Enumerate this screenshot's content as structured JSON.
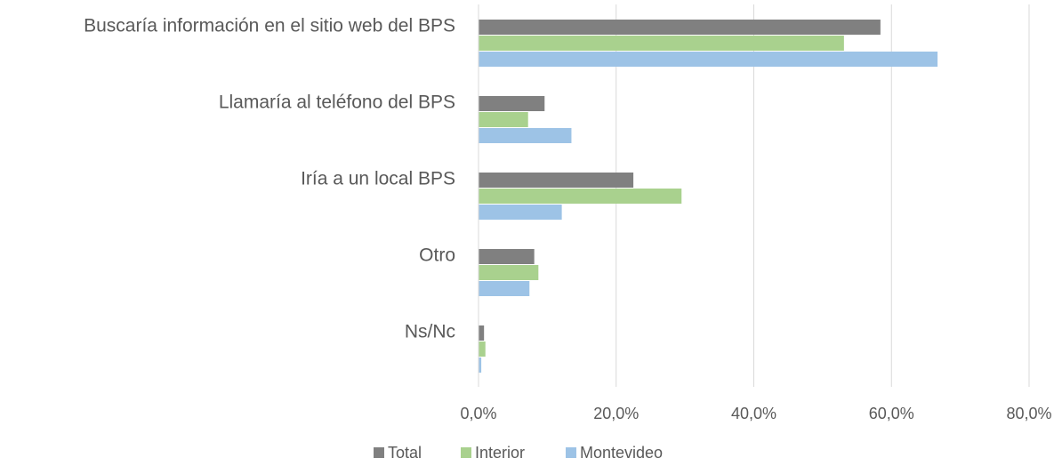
{
  "chart_data": {
    "type": "bar",
    "orientation": "horizontal",
    "categories": [
      "Buscaría información en el sitio web del BPS",
      "Llamaría al teléfono del BPS",
      "Iría a un local BPS",
      "Otro",
      "Ns/Nc"
    ],
    "series": [
      {
        "name": "Total",
        "color": "#808080",
        "values": [
          58.4,
          9.6,
          22.5,
          8.1,
          0.8
        ]
      },
      {
        "name": "Interior",
        "color": "#a9d18e",
        "values": [
          53.1,
          7.2,
          29.5,
          8.7,
          1.0
        ]
      },
      {
        "name": "Montevideo",
        "color": "#9dc3e6",
        "values": [
          66.7,
          13.5,
          12.1,
          7.4,
          0.4
        ]
      }
    ],
    "xlim": [
      0,
      80
    ],
    "xticks": [
      {
        "value": 0,
        "label": "0,0%"
      },
      {
        "value": 20,
        "label": "20,0%"
      },
      {
        "value": 40,
        "label": "40,0%"
      },
      {
        "value": 60,
        "label": "60,0%"
      },
      {
        "value": 80,
        "label": "80,0%"
      }
    ],
    "grid": true,
    "legend": "bottom"
  }
}
